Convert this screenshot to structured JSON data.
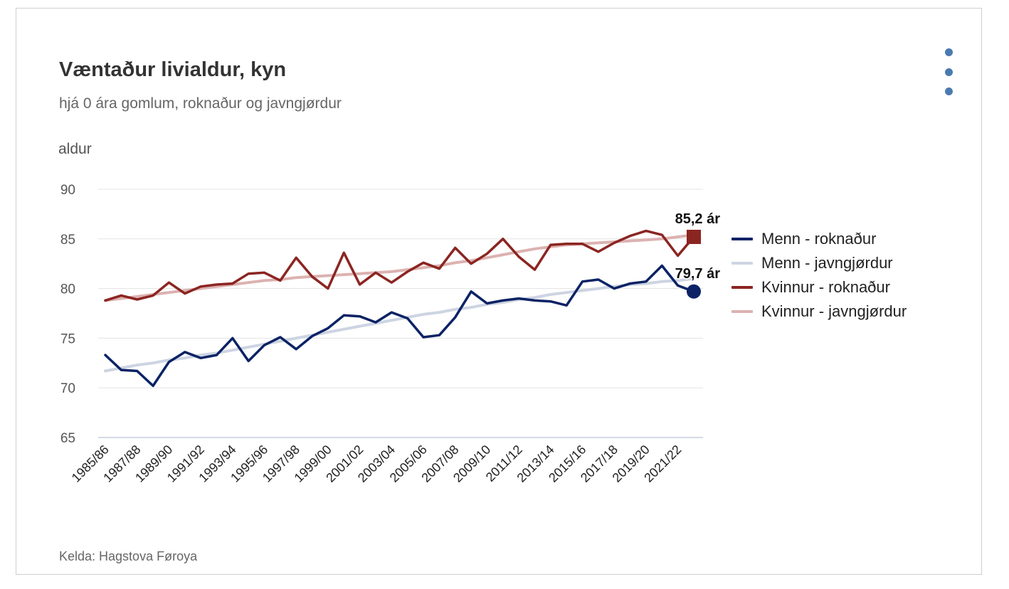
{
  "header": {
    "title": "Væntaður livialdur, kyn",
    "subtitle": "hjá 0 ára gomlum, roknaður og javngjørdur"
  },
  "footer": {
    "source": "Kelda: Hagstova Føroya"
  },
  "icons": {
    "menu": "more-vertical-icon"
  },
  "chart_data": {
    "type": "line",
    "title": "Væntaður livialdur, kyn",
    "subtitle": "hjá 0 ára gomlum, roknaður og javngjørdur",
    "ylabel": "aldur",
    "xlabel": "",
    "ylim": [
      65,
      90
    ],
    "yticks": [
      65,
      70,
      75,
      80,
      85,
      90
    ],
    "grid": true,
    "legend_position": "right",
    "x": [
      "1985/86",
      "1986/87",
      "1987/88",
      "1988/89",
      "1989/90",
      "1990/91",
      "1991/92",
      "1992/93",
      "1993/94",
      "1994/95",
      "1995/96",
      "1996/97",
      "1997/98",
      "1998/99",
      "1999/00",
      "2000/01",
      "2001/02",
      "2002/03",
      "2003/04",
      "2004/05",
      "2005/06",
      "2006/07",
      "2007/08",
      "2008/09",
      "2009/10",
      "2010/11",
      "2011/12",
      "2012/13",
      "2013/14",
      "2014/15",
      "2015/16",
      "2016/17",
      "2017/18",
      "2018/19",
      "2019/20",
      "2020/21",
      "2021/22",
      "2022/23"
    ],
    "x_tick_labels": [
      "1985/86",
      "1987/88",
      "1989/90",
      "1991/92",
      "1993/94",
      "1995/96",
      "1997/98",
      "1999/00",
      "2001/02",
      "2003/04",
      "2005/06",
      "2007/08",
      "2009/10",
      "2011/12",
      "2013/14",
      "2015/16",
      "2017/18",
      "2019/20",
      "2021/22"
    ],
    "series": [
      {
        "name": "Menn - roknaður",
        "color": "#0b2265",
        "marker": "circle",
        "values": [
          73.3,
          71.8,
          71.7,
          70.2,
          72.6,
          73.6,
          73.0,
          73.3,
          75.0,
          72.7,
          74.3,
          75.1,
          73.9,
          75.2,
          76.0,
          77.3,
          77.2,
          76.6,
          77.6,
          77.0,
          75.1,
          75.3,
          77.1,
          79.7,
          78.5,
          78.8,
          79.0,
          78.8,
          78.7,
          78.3,
          80.7,
          80.9,
          80.0,
          80.5,
          80.7,
          82.3,
          80.3,
          79.7
        ]
      },
      {
        "name": "Menn - javngjørdur",
        "color": "#cdd4e2",
        "values": [
          71.7,
          72.0,
          72.3,
          72.5,
          72.8,
          73.0,
          73.3,
          73.5,
          73.8,
          74.1,
          74.4,
          74.7,
          75.0,
          75.3,
          75.6,
          75.9,
          76.2,
          76.5,
          76.8,
          77.1,
          77.4,
          77.6,
          77.9,
          78.1,
          78.4,
          78.6,
          78.9,
          79.1,
          79.4,
          79.6,
          79.8,
          80.0,
          80.2,
          80.4,
          80.5,
          80.7,
          80.8,
          81.0
        ]
      },
      {
        "name": "Kvinnur - roknaður",
        "color": "#8b2521",
        "marker": "square",
        "values": [
          78.8,
          79.3,
          78.9,
          79.3,
          80.6,
          79.5,
          80.2,
          80.4,
          80.5,
          81.5,
          81.6,
          80.8,
          83.1,
          81.2,
          80.0,
          83.6,
          80.4,
          81.6,
          80.6,
          81.7,
          82.6,
          82.0,
          84.1,
          82.5,
          83.5,
          85.0,
          83.2,
          81.9,
          84.4,
          84.5,
          84.5,
          83.7,
          84.6,
          85.3,
          85.8,
          85.4,
          83.3,
          85.2
        ]
      },
      {
        "name": "Kvinnur - javngjørdur",
        "color": "#dcb2b1",
        "values": [
          78.8,
          79.0,
          79.2,
          79.4,
          79.6,
          79.8,
          80.0,
          80.2,
          80.4,
          80.6,
          80.8,
          80.9,
          81.1,
          81.2,
          81.3,
          81.4,
          81.5,
          81.6,
          81.7,
          81.9,
          82.1,
          82.3,
          82.6,
          82.8,
          83.1,
          83.4,
          83.7,
          84.0,
          84.2,
          84.4,
          84.5,
          84.6,
          84.7,
          84.8,
          84.9,
          85.0,
          85.2,
          85.4
        ]
      }
    ],
    "annotations": [
      {
        "series": "Kvinnur - roknaður",
        "x": "2022/23",
        "y": 85.2,
        "text": "85,2 ár"
      },
      {
        "series": "Menn - roknaður",
        "x": "2022/23",
        "y": 79.7,
        "text": "79,7 ár"
      }
    ]
  }
}
